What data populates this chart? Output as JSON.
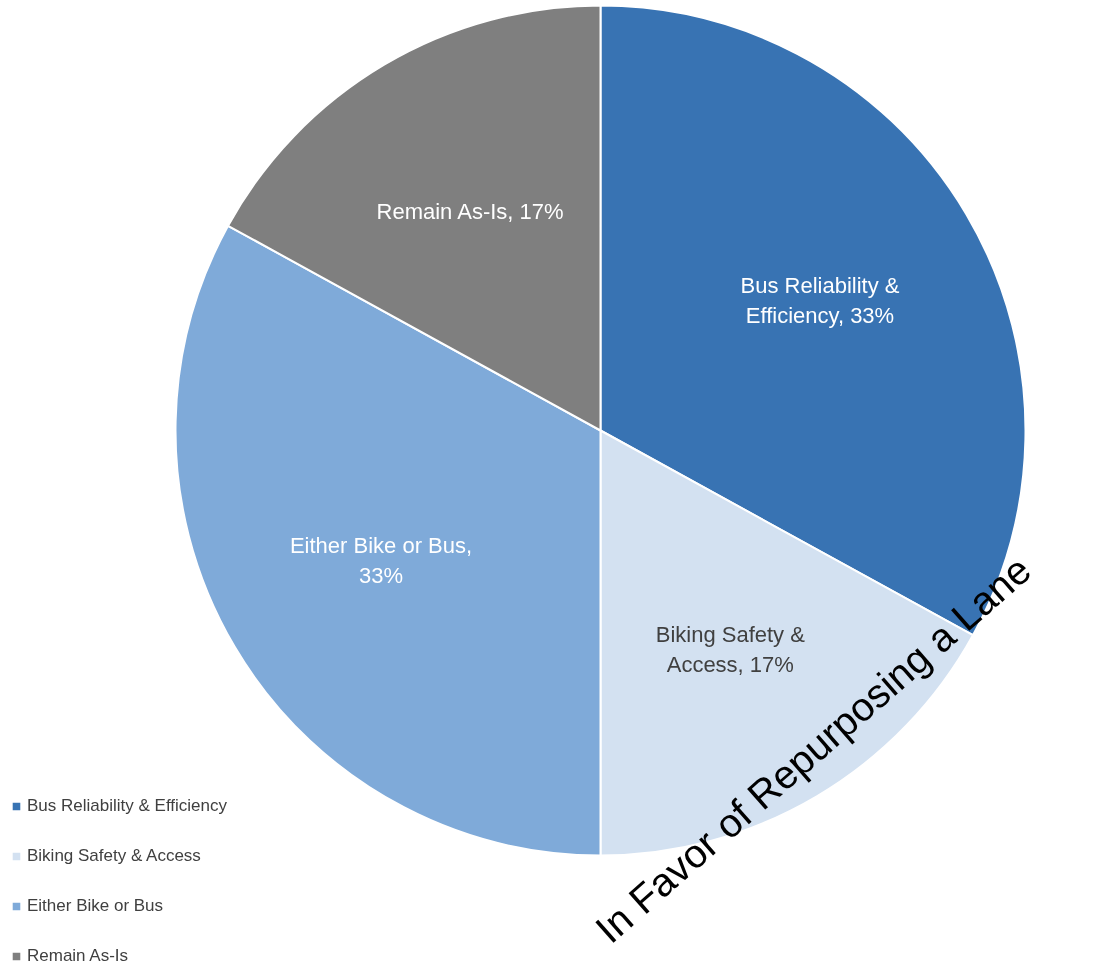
{
  "chart_data": {
    "type": "pie",
    "categories": [
      "Bus Reliability & Efficiency",
      "Biking Safety & Access",
      "Either Bike or Bus",
      "Remain As-Is"
    ],
    "values": [
      33,
      17,
      33,
      17
    ],
    "colors": [
      "#3873b3",
      "#d3e1f1",
      "#7faad9",
      "#7f7f7f"
    ],
    "value_labels": [
      "Bus Reliability & Efficiency, 33%",
      "Biking Safety & Access, 17%",
      "Either Bike or Bus, 33%",
      "Remain As-Is, 17%"
    ],
    "legend": "bottom left",
    "annotations": [
      "In Favor of Repurposing a Lane"
    ]
  }
}
